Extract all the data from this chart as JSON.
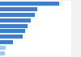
{
  "values": [
    100,
    63,
    58,
    52,
    46,
    42,
    38,
    22,
    10,
    8
  ],
  "bar_color": "#3d7ed4",
  "bar_color_light": "#a8c8ee",
  "background_color": "#f2f2f2",
  "plot_bg": "#ffffff",
  "xlim": [
    0,
    120
  ]
}
